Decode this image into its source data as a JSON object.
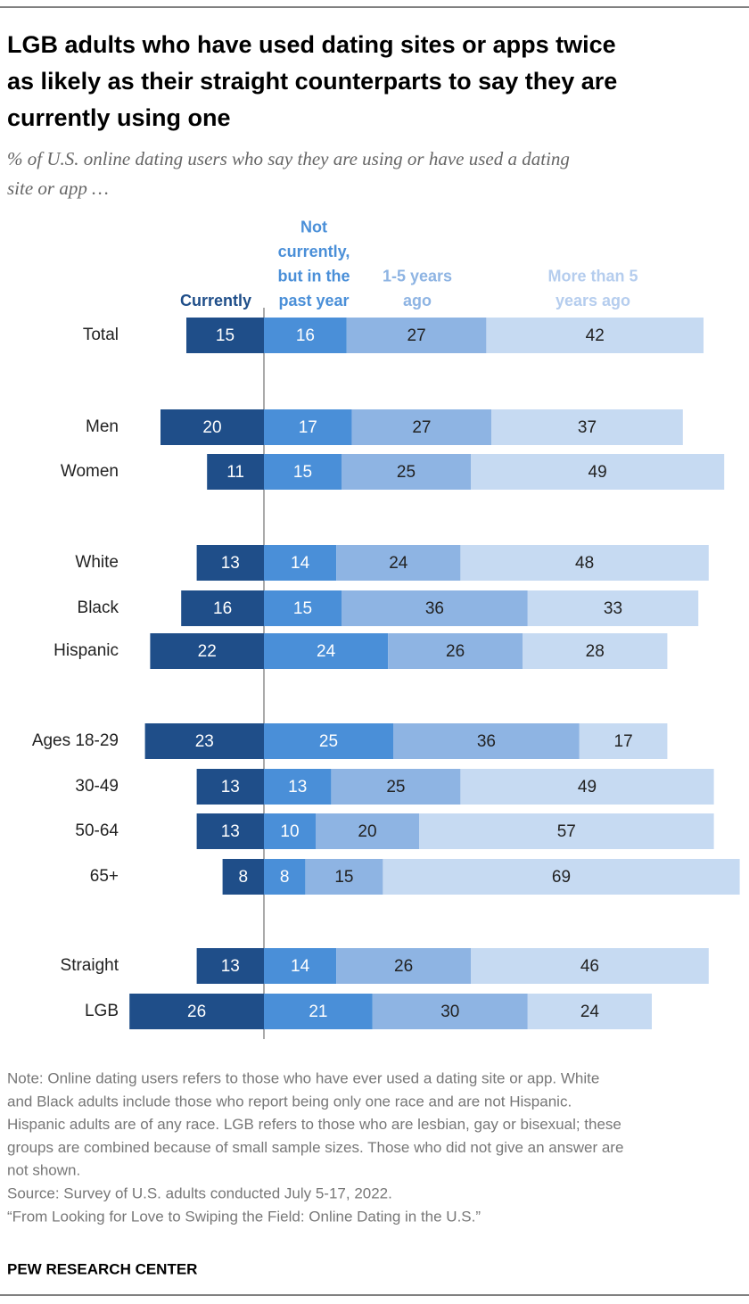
{
  "chart_data": {
    "type": "diverging-bar",
    "title": [
      "LGB adults who have used dating sites or apps twice",
      "as likely as their straight counterparts to say they are",
      "currently using one"
    ],
    "subtitle": [
      "% of U.S. online dating users who say they are using or have used a dating",
      "site or app …"
    ],
    "categories": [
      "Total",
      "Men",
      "Women",
      "White",
      "Black",
      "Hispanic",
      "Ages 18-29",
      "30-49",
      "50-64",
      "65+",
      "Straight",
      "LGB"
    ],
    "series": [
      {
        "name": "Currently",
        "color": "#1f4e89",
        "values": [
          15,
          20,
          11,
          13,
          16,
          22,
          23,
          13,
          13,
          8,
          13,
          26
        ]
      },
      {
        "name": "Not currently, but in the past year",
        "color": "#4a8fd8",
        "values": [
          16,
          17,
          15,
          14,
          15,
          24,
          25,
          13,
          10,
          8,
          14,
          21
        ]
      },
      {
        "name": "1-5 years ago",
        "color": "#8eb4e3",
        "values": [
          27,
          27,
          25,
          24,
          36,
          26,
          36,
          25,
          20,
          15,
          26,
          30
        ]
      },
      {
        "name": "More than 5 years ago",
        "color": "#c6daf2",
        "values": [
          42,
          37,
          49,
          48,
          33,
          28,
          17,
          49,
          57,
          69,
          46,
          24
        ]
      }
    ],
    "note": [
      "Note: Online dating users refers to those who have ever used a dating site or app. White",
      "and Black adults include those who report being only one race and are not Hispanic.",
      "Hispanic adults are of any race. LGB refers to those who are lesbian, gay or bisexual; these",
      "groups are combined because of small sample sizes. Those who did not give an answer are",
      "not shown.",
      "Source: Survey of U.S. adults conducted July 5-17, 2022.",
      "“From Looking for Love to Swiping the Field: Online Dating in the U.S.”"
    ],
    "source_org": "PEW RESEARCH CENTER"
  }
}
